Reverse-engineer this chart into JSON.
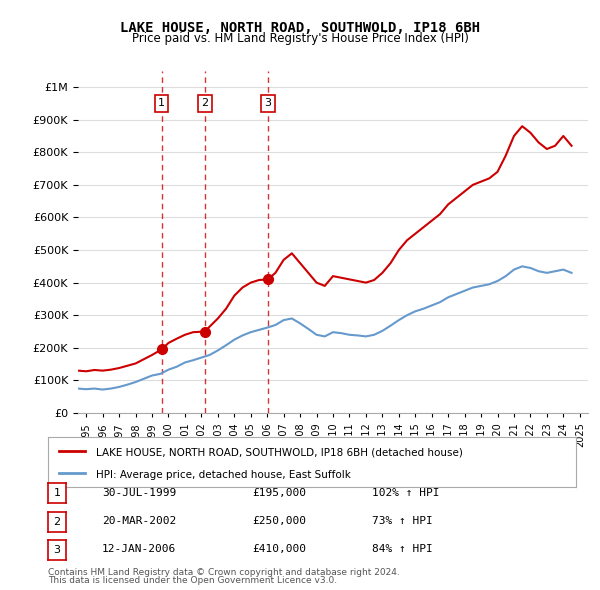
{
  "title": "LAKE HOUSE, NORTH ROAD, SOUTHWOLD, IP18 6BH",
  "subtitle": "Price paid vs. HM Land Registry's House Price Index (HPI)",
  "legend_line1": "LAKE HOUSE, NORTH ROAD, SOUTHWOLD, IP18 6BH (detached house)",
  "legend_line2": "HPI: Average price, detached house, East Suffolk",
  "footer1": "Contains HM Land Registry data © Crown copyright and database right 2024.",
  "footer2": "This data is licensed under the Open Government Licence v3.0.",
  "transactions": [
    {
      "num": 1,
      "date": "30-JUL-1999",
      "price": 195000,
      "pct": "102%",
      "dir": "↑",
      "x": 1999.58
    },
    {
      "num": 2,
      "date": "20-MAR-2002",
      "price": 250000,
      "pct": "73%",
      "dir": "↑",
      "x": 2002.21
    },
    {
      "num": 3,
      "date": "12-JAN-2006",
      "price": 410000,
      "pct": "84%",
      "dir": "↑",
      "x": 2006.04
    }
  ],
  "red_line_color": "#cc0000",
  "blue_line_color": "#6699cc",
  "vline_color": "#cc0000",
  "marker_color": "#cc0000",
  "background_color": "#ffffff",
  "grid_color": "#dddddd",
  "ylim": [
    0,
    1100000
  ],
  "xlim": [
    1994.5,
    2025.5
  ],
  "red_x": [
    1994.5,
    1995,
    1995.5,
    1996,
    1996.5,
    1997,
    1997.5,
    1998,
    1998.5,
    1999,
    1999.58,
    2000,
    2000.5,
    2001,
    2001.5,
    2002.21,
    2002.5,
    2003,
    2003.5,
    2004,
    2004.5,
    2005,
    2005.5,
    2006.04,
    2006.5,
    2007,
    2007.5,
    2008,
    2008.5,
    2009,
    2009.5,
    2010,
    2010.5,
    2011,
    2011.5,
    2012,
    2012.5,
    2013,
    2013.5,
    2014,
    2014.5,
    2015,
    2015.5,
    2016,
    2016.5,
    2017,
    2017.5,
    2018,
    2018.5,
    2019,
    2019.5,
    2020,
    2020.5,
    2021,
    2021.5,
    2022,
    2022.5,
    2023,
    2023.5,
    2024,
    2024.5
  ],
  "red_y": [
    130000,
    128000,
    132000,
    130000,
    133000,
    138000,
    145000,
    152000,
    165000,
    178000,
    195000,
    215000,
    228000,
    240000,
    248000,
    250000,
    265000,
    290000,
    320000,
    360000,
    385000,
    400000,
    408000,
    410000,
    430000,
    470000,
    490000,
    460000,
    430000,
    400000,
    390000,
    420000,
    415000,
    410000,
    405000,
    400000,
    408000,
    430000,
    460000,
    500000,
    530000,
    550000,
    570000,
    590000,
    610000,
    640000,
    660000,
    680000,
    700000,
    710000,
    720000,
    740000,
    790000,
    850000,
    880000,
    860000,
    830000,
    810000,
    820000,
    850000,
    820000
  ],
  "blue_x": [
    1994.5,
    1995,
    1995.5,
    1996,
    1996.5,
    1997,
    1997.5,
    1998,
    1998.5,
    1999,
    1999.5,
    2000,
    2000.5,
    2001,
    2001.5,
    2002,
    2002.5,
    2003,
    2003.5,
    2004,
    2004.5,
    2005,
    2005.5,
    2006,
    2006.5,
    2007,
    2007.5,
    2008,
    2008.5,
    2009,
    2009.5,
    2010,
    2010.5,
    2011,
    2011.5,
    2012,
    2012.5,
    2013,
    2013.5,
    2014,
    2014.5,
    2015,
    2015.5,
    2016,
    2016.5,
    2017,
    2017.5,
    2018,
    2018.5,
    2019,
    2019.5,
    2020,
    2020.5,
    2021,
    2021.5,
    2022,
    2022.5,
    2023,
    2023.5,
    2024,
    2024.5
  ],
  "blue_y": [
    75000,
    73000,
    75000,
    72000,
    75000,
    80000,
    87000,
    95000,
    105000,
    115000,
    120000,
    133000,
    142000,
    155000,
    162000,
    170000,
    178000,
    192000,
    208000,
    225000,
    238000,
    248000,
    255000,
    262000,
    270000,
    285000,
    290000,
    275000,
    258000,
    240000,
    235000,
    248000,
    245000,
    240000,
    238000,
    235000,
    240000,
    252000,
    268000,
    285000,
    300000,
    312000,
    320000,
    330000,
    340000,
    355000,
    365000,
    375000,
    385000,
    390000,
    395000,
    405000,
    420000,
    440000,
    450000,
    445000,
    435000,
    430000,
    435000,
    440000,
    430000
  ]
}
